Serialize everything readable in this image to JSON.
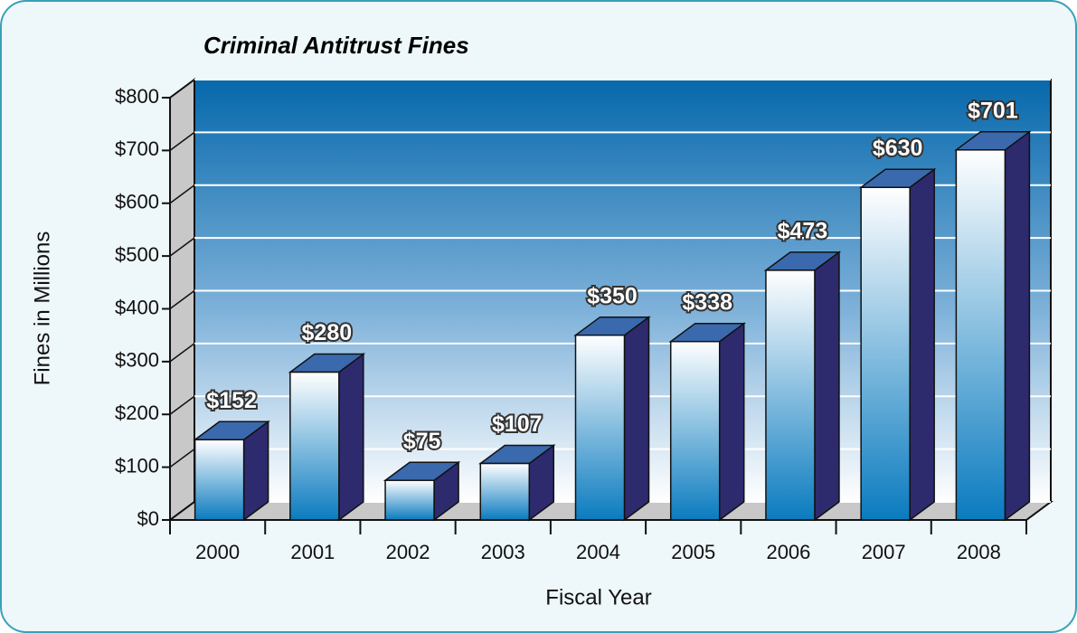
{
  "chart_data": {
    "type": "bar3d",
    "title": "Criminal Antitrust Fines",
    "x_label": "Fiscal Year",
    "y_label": "Fines in Millions",
    "categories": [
      "2000",
      "2001",
      "2002",
      "2003",
      "2004",
      "2005",
      "2006",
      "2007",
      "2008"
    ],
    "values": [
      152,
      280,
      75,
      107,
      350,
      338,
      473,
      630,
      701
    ],
    "value_labels": [
      "$152",
      "$280",
      "$75",
      "$107",
      "$350",
      "$338",
      "$473",
      "$630",
      "$701"
    ],
    "color": "#0a7bbf",
    "ylim": [
      0,
      800
    ],
    "yticks": [
      {
        "value": 0,
        "label": "$0"
      },
      {
        "value": 100,
        "label": "$100"
      },
      {
        "value": 200,
        "label": "$200"
      },
      {
        "value": 300,
        "label": "$300"
      },
      {
        "value": 400,
        "label": "$400"
      },
      {
        "value": 500,
        "label": "$500"
      },
      {
        "value": 600,
        "label": "$600"
      },
      {
        "value": 700,
        "label": "$700"
      },
      {
        "value": 800,
        "label": "$800"
      }
    ],
    "grid": true
  }
}
